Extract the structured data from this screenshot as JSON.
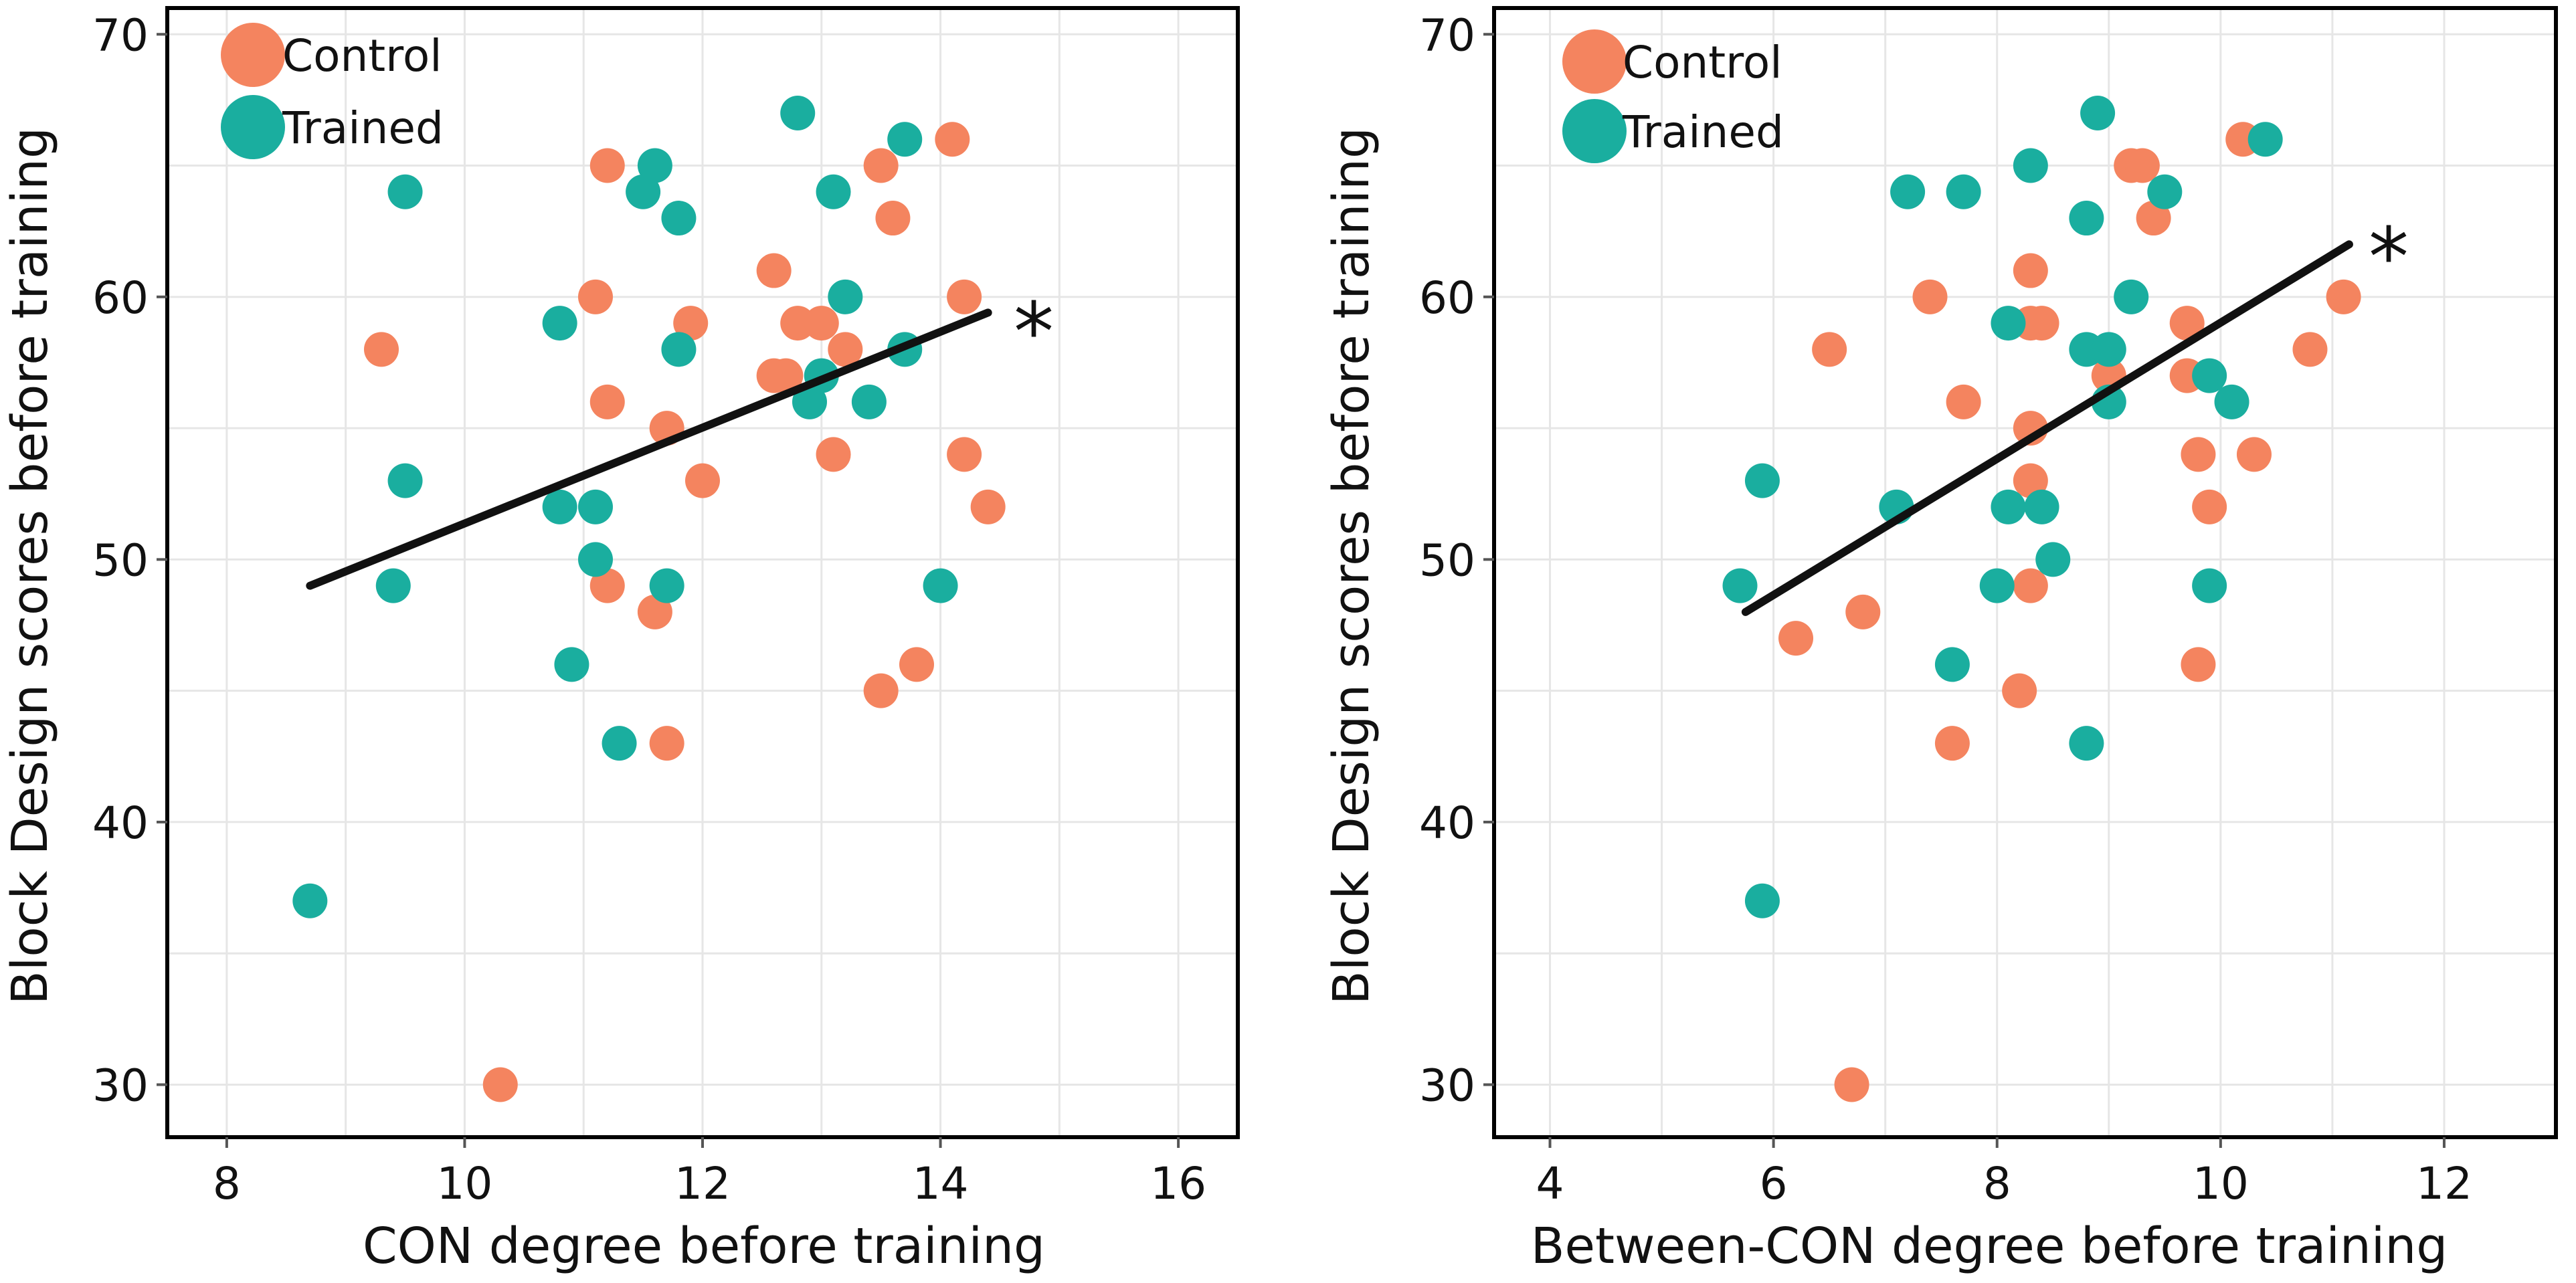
{
  "colors": {
    "control": "#F4845F",
    "trained": "#1AAE9F",
    "line": "#111111",
    "grid": "#e6e6e6",
    "frame": "#000000"
  },
  "chart_data": [
    {
      "type": "scatter",
      "title": "",
      "xlabel": "CON degree before training",
      "ylabel": "Block Design scores before training",
      "xlim": [
        7.5,
        16.5
      ],
      "ylim": [
        28,
        71
      ],
      "xticks": [
        8,
        10,
        12,
        14,
        16
      ],
      "yticks": [
        30,
        40,
        50,
        60,
        70
      ],
      "legend": {
        "placement": "top-left",
        "entries": [
          "Control",
          "Trained"
        ]
      },
      "annotation": "*",
      "fit_line": {
        "x": [
          8.7,
          14.4
        ],
        "y": [
          49,
          59.4
        ]
      },
      "series": [
        {
          "name": "Control",
          "color_key": "control",
          "points": [
            [
              9.3,
              58
            ],
            [
              10.3,
              30
            ],
            [
              11.1,
              60
            ],
            [
              11.2,
              65
            ],
            [
              11.2,
              56
            ],
            [
              11.2,
              49
            ],
            [
              11.6,
              48
            ],
            [
              11.7,
              55
            ],
            [
              11.7,
              43
            ],
            [
              11.9,
              59
            ],
            [
              12.0,
              53
            ],
            [
              12.6,
              61
            ],
            [
              12.6,
              57
            ],
            [
              12.7,
              57
            ],
            [
              12.8,
              59
            ],
            [
              13.0,
              59
            ],
            [
              13.1,
              54
            ],
            [
              13.2,
              58
            ],
            [
              13.5,
              65
            ],
            [
              13.6,
              63
            ],
            [
              13.5,
              45
            ],
            [
              13.8,
              46
            ],
            [
              14.1,
              66
            ],
            [
              14.2,
              60
            ],
            [
              14.2,
              54
            ],
            [
              14.4,
              52
            ]
          ]
        },
        {
          "name": "Trained",
          "color_key": "trained",
          "points": [
            [
              8.7,
              37
            ],
            [
              9.4,
              49
            ],
            [
              9.5,
              53
            ],
            [
              9.5,
              64
            ],
            [
              10.8,
              59
            ],
            [
              10.8,
              52
            ],
            [
              10.9,
              46
            ],
            [
              11.1,
              52
            ],
            [
              11.1,
              50
            ],
            [
              11.3,
              43
            ],
            [
              11.5,
              64
            ],
            [
              11.6,
              65
            ],
            [
              11.7,
              49
            ],
            [
              11.8,
              63
            ],
            [
              11.8,
              58
            ],
            [
              12.8,
              67
            ],
            [
              12.9,
              56
            ],
            [
              13.0,
              57
            ],
            [
              13.1,
              64
            ],
            [
              13.2,
              60
            ],
            [
              13.4,
              56
            ],
            [
              13.7,
              66
            ],
            [
              13.7,
              58
            ],
            [
              14.0,
              49
            ]
          ]
        }
      ]
    },
    {
      "type": "scatter",
      "title": "",
      "xlabel": "Between-CON degree before training",
      "ylabel": "Block Design scores before training",
      "xlim": [
        3.5,
        13.0
      ],
      "ylim": [
        28,
        71
      ],
      "xticks": [
        4,
        6,
        8,
        10,
        12
      ],
      "yticks": [
        30,
        40,
        50,
        60,
        70
      ],
      "legend": {
        "placement": "top-left",
        "entries": [
          "Control",
          "Trained"
        ]
      },
      "annotation": "*",
      "fit_line": {
        "x": [
          5.75,
          11.15
        ],
        "y": [
          48,
          62
        ]
      },
      "series": [
        {
          "name": "Control",
          "color_key": "control",
          "points": [
            [
              6.2,
              47
            ],
            [
              6.5,
              58
            ],
            [
              6.7,
              30
            ],
            [
              6.8,
              48
            ],
            [
              7.4,
              60
            ],
            [
              7.6,
              43
            ],
            [
              7.7,
              56
            ],
            [
              8.2,
              45
            ],
            [
              8.3,
              61
            ],
            [
              8.3,
              59
            ],
            [
              8.3,
              55
            ],
            [
              8.3,
              53
            ],
            [
              8.3,
              49
            ],
            [
              8.4,
              59
            ],
            [
              9.0,
              57
            ],
            [
              9.2,
              65
            ],
            [
              9.3,
              65
            ],
            [
              9.4,
              63
            ],
            [
              9.7,
              59
            ],
            [
              9.7,
              57
            ],
            [
              9.8,
              54
            ],
            [
              9.8,
              46
            ],
            [
              9.9,
              52
            ],
            [
              10.2,
              66
            ],
            [
              10.3,
              54
            ],
            [
              10.8,
              58
            ],
            [
              11.1,
              60
            ]
          ]
        },
        {
          "name": "Trained",
          "color_key": "trained",
          "points": [
            [
              5.7,
              49
            ],
            [
              5.9,
              53
            ],
            [
              5.9,
              37
            ],
            [
              7.1,
              52
            ],
            [
              7.2,
              64
            ],
            [
              7.6,
              46
            ],
            [
              7.7,
              64
            ],
            [
              8.0,
              49
            ],
            [
              8.1,
              59
            ],
            [
              8.1,
              52
            ],
            [
              8.3,
              65
            ],
            [
              8.4,
              52
            ],
            [
              8.5,
              50
            ],
            [
              8.8,
              63
            ],
            [
              8.8,
              58
            ],
            [
              8.8,
              43
            ],
            [
              8.9,
              67
            ],
            [
              9.0,
              58
            ],
            [
              9.0,
              56
            ],
            [
              9.2,
              60
            ],
            [
              9.5,
              64
            ],
            [
              9.9,
              57
            ],
            [
              9.9,
              49
            ],
            [
              10.1,
              56
            ],
            [
              10.4,
              66
            ]
          ]
        }
      ]
    }
  ]
}
